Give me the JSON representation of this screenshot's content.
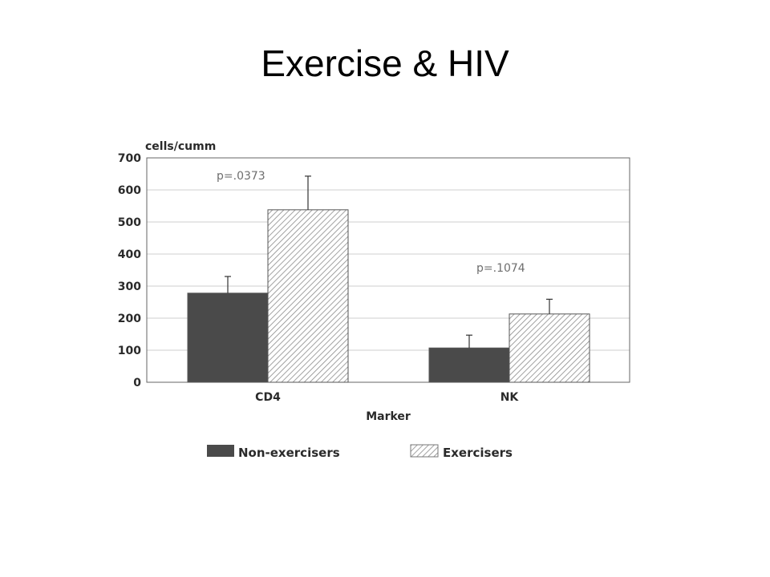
{
  "slide": {
    "title": "Exercise & HIV"
  },
  "colors": {
    "non_exercisers_fill": "#4a4a4a",
    "exercisers_hatch": "#8a8a8a",
    "grid": "#cfcfcf",
    "frame": "#666666"
  },
  "chart_data": {
    "type": "bar",
    "title": "",
    "ylabel": "cells/cumm",
    "xlabel": "Marker",
    "ylim": [
      0,
      700
    ],
    "yticks": [
      0,
      100,
      200,
      300,
      400,
      500,
      600,
      700
    ],
    "grid": true,
    "legend_position": "bottom",
    "categories": [
      "CD4",
      "NK"
    ],
    "series": [
      {
        "name": "Non-exercisers",
        "pattern": "solid",
        "values": [
          278,
          107
        ],
        "error": [
          52,
          40
        ]
      },
      {
        "name": "Exercisers",
        "pattern": "hatched",
        "values": [
          538,
          213
        ],
        "error": [
          105,
          46
        ]
      }
    ],
    "annotations": [
      {
        "category": "CD4",
        "text": "p=.0373"
      },
      {
        "category": "NK",
        "text": "p=.1074"
      }
    ]
  }
}
